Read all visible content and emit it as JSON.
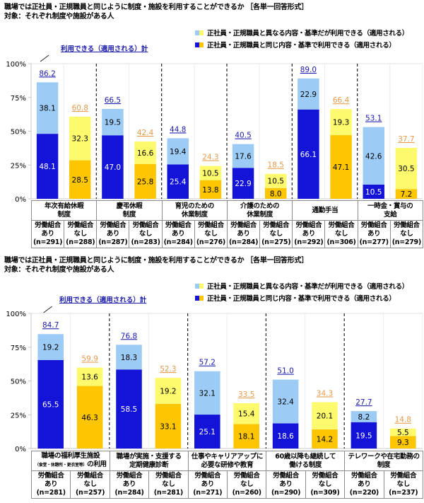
{
  "colors": {
    "union_same": "#1414d8",
    "union_diff": "#9ccbf5",
    "nonunion_same": "#fdc600",
    "nonunion_diff": "#fdfa6e",
    "union_total_label": "#1a1aa8",
    "nonunion_total_label": "#e49a4a"
  },
  "charts": [
    {
      "title": "職場では正社員・正規職員と同じように制度・施設を利用することができるか ［各単一回答形式］",
      "subtitle": "対象：それぞれ制度や施設がある人",
      "legend": [
        "正社員・正規職員と異なる内容・基準だが利用できる（適用される）",
        "正社員・正規職員と同じ内容・基準で利用できる（適用される）"
      ],
      "total_label": "利用できる（適用される）計",
      "group_label_union": "労働組合",
      "sub_union": "あり",
      "sub_nonunion": "なし"
    },
    {
      "title": "職場では正社員・正規職員と同じように制度・施設を利用することができるか ［各単一回答形式］",
      "subtitle": "対象：それぞれ制度や施設がある人",
      "legend": [
        "正社員・正規職員と異なる内容・基準だが利用できる（適用される）",
        "正社員・正規職員と同じ内容・基準で利用できる（適用される）"
      ],
      "total_label": "利用できる（適用される）計",
      "group_label_union": "労働組合",
      "sub_union": "あり",
      "sub_nonunion": "なし"
    }
  ],
  "chart_data": [
    {
      "type": "bar",
      "stacked": true,
      "ylim": [
        0,
        100
      ],
      "yticks": [
        "0%",
        "25%",
        "50%",
        "75%",
        "100%"
      ],
      "categories": [
        {
          "line1": "年次有給休暇",
          "line2": "制度",
          "small": ""
        },
        {
          "line1": "慶弔休暇",
          "line2": "制度",
          "small": ""
        },
        {
          "line1": "育児のための",
          "line2": "休業制度",
          "small": ""
        },
        {
          "line1": "介護のための",
          "line2": "休業制度",
          "small": ""
        },
        {
          "line1": "通勤手当",
          "line2": "",
          "small": ""
        },
        {
          "line1": "一時金・賞与の",
          "line2": "支給",
          "small": ""
        }
      ],
      "bars": [
        {
          "group": "労働組合あり",
          "n": "(n=291)",
          "same": 48.1,
          "diff": 38.1,
          "total": "86.2"
        },
        {
          "group": "労働組合なし",
          "n": "(n=288)",
          "same": 28.5,
          "diff": 32.3,
          "total": "60.8"
        },
        {
          "group": "労働組合あり",
          "n": "(n=287)",
          "same": 47.0,
          "diff": 19.5,
          "total": "66.5"
        },
        {
          "group": "労働組合なし",
          "n": "(n=283)",
          "same": 25.8,
          "diff": 16.6,
          "total": "42.4"
        },
        {
          "group": "労働組合あり",
          "n": "(n=284)",
          "same": 25.4,
          "diff": 19.4,
          "total": "44.8"
        },
        {
          "group": "労働組合なし",
          "n": "(n=276)",
          "same": 13.8,
          "diff": 10.5,
          "total": "24.3"
        },
        {
          "group": "労働組合あり",
          "n": "(n=284)",
          "same": 22.9,
          "diff": 17.6,
          "total": "40.5"
        },
        {
          "group": "労働組合なし",
          "n": "(n=275)",
          "same": 8.0,
          "diff": 10.5,
          "total": "18.5"
        },
        {
          "group": "労働組合あり",
          "n": "(n=292)",
          "same": 66.1,
          "diff": 22.9,
          "total": "89.0"
        },
        {
          "group": "労働組合なし",
          "n": "(n=306)",
          "same": 47.1,
          "diff": 19.3,
          "total": "66.4"
        },
        {
          "group": "労働組合あり",
          "n": "(n=277)",
          "same": 10.5,
          "diff": 42.6,
          "total": "53.1"
        },
        {
          "group": "労働組合なし",
          "n": "(n=279)",
          "same": 7.2,
          "diff": 30.5,
          "total": "37.7"
        }
      ]
    },
    {
      "type": "bar",
      "stacked": true,
      "ylim": [
        0,
        100
      ],
      "yticks": [
        "0%",
        "25%",
        "50%",
        "75%",
        "100%"
      ],
      "categories": [
        {
          "line1": "職場の福利厚生施設",
          "line2": "の利用",
          "small": "（食堂・休憩所・更衣室等）"
        },
        {
          "line1": "職場が実施・支援する",
          "line2": "定期健康診断",
          "small": ""
        },
        {
          "line1": "仕事やキャリアアップに",
          "line2": "必要な研修や教育",
          "small": ""
        },
        {
          "line1": "60歳以降も継続して",
          "line2": "働ける制度",
          "small": ""
        },
        {
          "line1": "テレワークや在宅勤務の",
          "line2": "制度",
          "small": ""
        }
      ],
      "bars": [
        {
          "group": "労働組合あり",
          "n": "(n=281)",
          "same": 65.5,
          "diff": 19.2,
          "total": "84.7"
        },
        {
          "group": "労働組合なし",
          "n": "(n=257)",
          "same": 46.3,
          "diff": 13.6,
          "total": "59.9"
        },
        {
          "group": "労働組合あり",
          "n": "(n=284)",
          "same": 58.5,
          "diff": 18.3,
          "total": "76.8"
        },
        {
          "group": "労働組合なし",
          "n": "(n=281)",
          "same": 33.1,
          "diff": 19.2,
          "total": "52.3"
        },
        {
          "group": "労働組合あり",
          "n": "(n=271)",
          "same": 25.1,
          "diff": 32.1,
          "total": "57.2"
        },
        {
          "group": "労働組合なし",
          "n": "(n=260)",
          "same": 18.1,
          "diff": 15.4,
          "total": "33.5"
        },
        {
          "group": "労働組合あり",
          "n": "(n=290)",
          "same": 18.6,
          "diff": 32.4,
          "total": "51.0"
        },
        {
          "group": "労働組合なし",
          "n": "(n=309)",
          "same": 14.2,
          "diff": 20.1,
          "total": "34.3"
        },
        {
          "group": "労働組合あり",
          "n": "(n=220)",
          "same": 19.5,
          "diff": 8.2,
          "total": "27.7"
        },
        {
          "group": "労働組合なし",
          "n": "(n=237)",
          "same": 9.3,
          "diff": 5.5,
          "total": "14.8"
        }
      ]
    }
  ]
}
